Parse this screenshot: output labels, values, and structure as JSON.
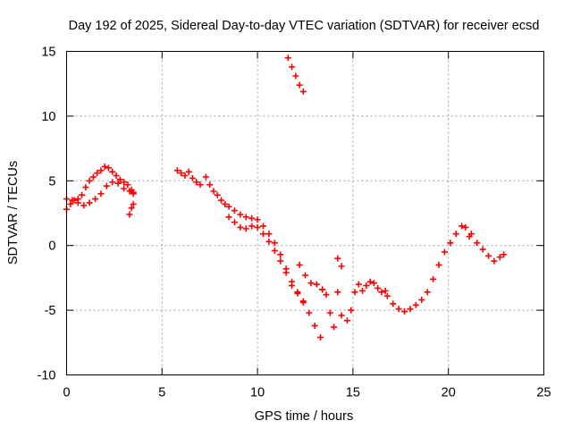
{
  "chart_data": {
    "type": "scatter",
    "title": "Day 192 of 2025, Sidereal Day-to-day VTEC variation (SDTVAR) for receiver ecsd",
    "xlabel": "GPS time / hours",
    "ylabel": "SDTVAR / TECUs",
    "xlim": [
      0,
      25
    ],
    "ylim": [
      -10,
      15
    ],
    "xticks": [
      0,
      5,
      10,
      15,
      20,
      25
    ],
    "yticks": [
      -10,
      -5,
      0,
      5,
      10,
      15
    ],
    "xtick_labels": [
      "0",
      "5",
      "10",
      "15",
      "20",
      "25"
    ],
    "ytick_labels": [
      "-10",
      "-5",
      "0",
      "5",
      "10",
      "15"
    ],
    "grid": true,
    "marker_color": "#ff0000",
    "series": [
      {
        "name": "arc-1-upper",
        "x": [
          0.0,
          0.2,
          0.4,
          0.6,
          0.8,
          1.0,
          1.2,
          1.4,
          1.6,
          1.8,
          2.0,
          2.2,
          2.4,
          2.6,
          2.8,
          3.0,
          3.2,
          3.4,
          3.5
        ],
        "y": [
          2.8,
          3.2,
          3.5,
          3.6,
          3.9,
          4.5,
          5.0,
          5.3,
          5.6,
          5.8,
          6.1,
          6.0,
          5.7,
          5.4,
          5.1,
          4.9,
          4.7,
          4.3,
          4.1
        ]
      },
      {
        "name": "arc-1-lower",
        "x": [
          0.0,
          0.3,
          0.6,
          0.9,
          1.2,
          1.5,
          1.8,
          2.1,
          2.4,
          2.7,
          3.0,
          3.3,
          3.5
        ],
        "y": [
          3.6,
          3.5,
          3.3,
          3.1,
          3.3,
          3.6,
          4.0,
          4.6,
          4.9,
          4.8,
          4.4,
          4.2,
          4.0
        ]
      },
      {
        "name": "arc-1-tail",
        "x": [
          3.3,
          3.4,
          3.5
        ],
        "y": [
          2.4,
          2.9,
          3.2
        ]
      },
      {
        "name": "arc-2",
        "x": [
          5.8,
          6.0,
          6.2,
          6.4,
          6.6,
          6.8,
          7.0
        ],
        "y": [
          5.8,
          5.6,
          5.4,
          5.7,
          5.2,
          4.9,
          4.7
        ]
      },
      {
        "name": "arc-3",
        "x": [
          7.3,
          7.5,
          7.7,
          7.9,
          8.1,
          8.3
        ],
        "y": [
          5.3,
          4.7,
          4.2,
          3.9,
          3.5,
          3.2
        ]
      },
      {
        "name": "arc-4-upper",
        "x": [
          8.5,
          8.8,
          9.1,
          9.4,
          9.7,
          10.0,
          10.3,
          10.6,
          10.9,
          11.2,
          11.5,
          11.8,
          12.1,
          12.4,
          12.7,
          13.0,
          13.3
        ],
        "y": [
          3.0,
          2.7,
          2.4,
          2.2,
          2.1,
          2.0,
          1.5,
          0.9,
          0.2,
          -0.7,
          -1.8,
          -2.8,
          -3.6,
          -4.3,
          -5.2,
          -6.2,
          -7.1
        ]
      },
      {
        "name": "arc-4-lower",
        "x": [
          8.5,
          8.8,
          9.1,
          9.4,
          9.7,
          10.0,
          10.3,
          10.6,
          10.9,
          11.2,
          11.5,
          11.8,
          12.1,
          12.4
        ],
        "y": [
          2.2,
          1.8,
          1.4,
          1.3,
          1.5,
          1.4,
          0.9,
          0.3,
          -0.4,
          -1.2,
          -2.1,
          -3.1,
          -3.7,
          -4.4
        ]
      },
      {
        "name": "arc-5",
        "x": [
          12.2,
          12.5,
          12.8,
          13.1,
          13.4
        ],
        "y": [
          -1.5,
          -2.3,
          -2.9,
          -3.0,
          -3.4
        ]
      },
      {
        "name": "arc-6",
        "x": [
          13.4,
          13.6,
          13.8,
          14.0,
          14.2,
          14.4
        ],
        "y": [
          -3.4,
          -3.8,
          -5.2,
          -6.3,
          -3.6,
          -5.4
        ]
      },
      {
        "name": "arc-7",
        "x": [
          14.2,
          14.4
        ],
        "y": [
          -1.0,
          -1.6
        ]
      },
      {
        "name": "arc-8",
        "x": [
          11.6,
          11.8,
          12.0,
          12.2,
          12.4
        ],
        "y": [
          14.5,
          13.8,
          13.1,
          12.4,
          11.9
        ]
      },
      {
        "name": "arc-9",
        "x": [
          14.7,
          14.9,
          15.1,
          15.3,
          15.5,
          15.7,
          15.9,
          16.1,
          16.3,
          16.5,
          16.7
        ],
        "y": [
          -5.8,
          -5.0,
          -3.6,
          -3.0,
          -3.5,
          -3.1,
          -2.8,
          -2.9,
          -3.3,
          -3.6,
          -3.5
        ]
      },
      {
        "name": "arc-10",
        "x": [
          16.8,
          17.1,
          17.4,
          17.7,
          18.0,
          18.3,
          18.6,
          18.9,
          19.2,
          19.5,
          19.8,
          20.1,
          20.4,
          20.7,
          20.9,
          21.1
        ],
        "y": [
          -3.9,
          -4.5,
          -4.9,
          -5.1,
          -4.9,
          -4.6,
          -4.2,
          -3.6,
          -2.6,
          -1.5,
          -0.5,
          0.2,
          0.9,
          1.5,
          1.4,
          0.7
        ]
      },
      {
        "name": "arc-11",
        "x": [
          21.2,
          21.5,
          21.8,
          22.1,
          22.4,
          22.7,
          22.9
        ],
        "y": [
          0.9,
          0.2,
          -0.3,
          -0.8,
          -1.2,
          -0.9,
          -0.7
        ]
      }
    ]
  }
}
